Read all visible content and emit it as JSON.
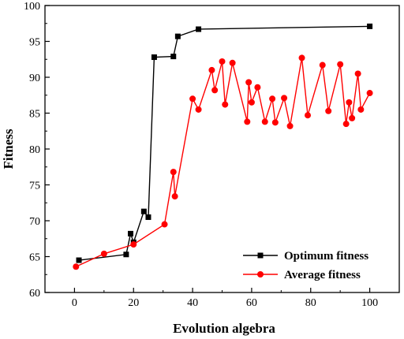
{
  "chart_data": {
    "type": "line",
    "xlabel": "Evolution algebra",
    "ylabel": "Fitness",
    "xlim": [
      -10,
      110
    ],
    "ylim": [
      60,
      100
    ],
    "xticks": [
      0,
      20,
      40,
      60,
      80,
      100
    ],
    "yticks": [
      60,
      65,
      70,
      75,
      80,
      85,
      90,
      95,
      100
    ],
    "grid": false,
    "legend_position": "bottom-right",
    "series": [
      {
        "name": "Optimum fitness",
        "color": "#000000",
        "marker": "square",
        "x": [
          1.5,
          17.5,
          19,
          20,
          23.5,
          25,
          27,
          33.5,
          35,
          42,
          100
        ],
        "y": [
          64.5,
          65.3,
          68.2,
          67.0,
          71.3,
          70.5,
          92.8,
          92.9,
          95.7,
          96.7,
          97.1
        ]
      },
      {
        "name": "Average fitness",
        "color": "#ff0000",
        "marker": "circle",
        "x": [
          0.5,
          10,
          20,
          30.5,
          33.5,
          34,
          40,
          42,
          46.5,
          47.5,
          50,
          51,
          53.5,
          58.5,
          59,
          60,
          62,
          64.5,
          67,
          68,
          71,
          73,
          77,
          79,
          84,
          86,
          90,
          92,
          93,
          94,
          96,
          97,
          100
        ],
        "y": [
          63.6,
          65.4,
          66.7,
          69.5,
          76.8,
          73.4,
          87.0,
          85.5,
          91.0,
          88.2,
          92.2,
          86.2,
          92.0,
          83.8,
          89.3,
          86.5,
          88.6,
          83.8,
          87.0,
          83.7,
          87.1,
          83.2,
          92.7,
          84.7,
          91.7,
          85.3,
          91.8,
          83.5,
          86.5,
          84.3,
          90.5,
          85.5,
          87.8
        ]
      }
    ]
  }
}
